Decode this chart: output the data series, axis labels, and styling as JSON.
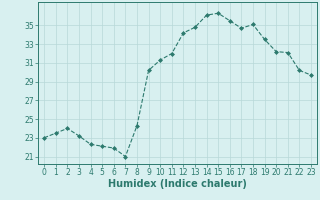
{
  "x": [
    0,
    1,
    2,
    3,
    4,
    5,
    6,
    7,
    8,
    9,
    10,
    11,
    12,
    13,
    14,
    15,
    16,
    17,
    18,
    19,
    20,
    21,
    22,
    23
  ],
  "y": [
    23.0,
    23.5,
    24.0,
    23.2,
    22.3,
    22.1,
    21.9,
    21.0,
    24.3,
    30.2,
    31.3,
    32.0,
    34.2,
    34.8,
    36.1,
    36.3,
    35.5,
    34.7,
    35.1,
    33.5,
    32.2,
    32.1,
    30.2,
    29.7
  ],
  "line_color": "#2d7a6e",
  "marker": "D",
  "markersize": 2.0,
  "linewidth": 0.8,
  "linestyle": "--",
  "bg_color": "#d8f0f0",
  "grid_color": "#b8d8d8",
  "xlabel": "Humidex (Indice chaleur)",
  "xlabel_fontsize": 7,
  "yticks": [
    21,
    23,
    25,
    27,
    29,
    31,
    33,
    35
  ],
  "xticks": [
    0,
    1,
    2,
    3,
    4,
    5,
    6,
    7,
    8,
    9,
    10,
    11,
    12,
    13,
    14,
    15,
    16,
    17,
    18,
    19,
    20,
    21,
    22,
    23
  ],
  "ylim": [
    20.2,
    37.5
  ],
  "xlim": [
    -0.5,
    23.5
  ],
  "tick_fontsize": 5.5
}
